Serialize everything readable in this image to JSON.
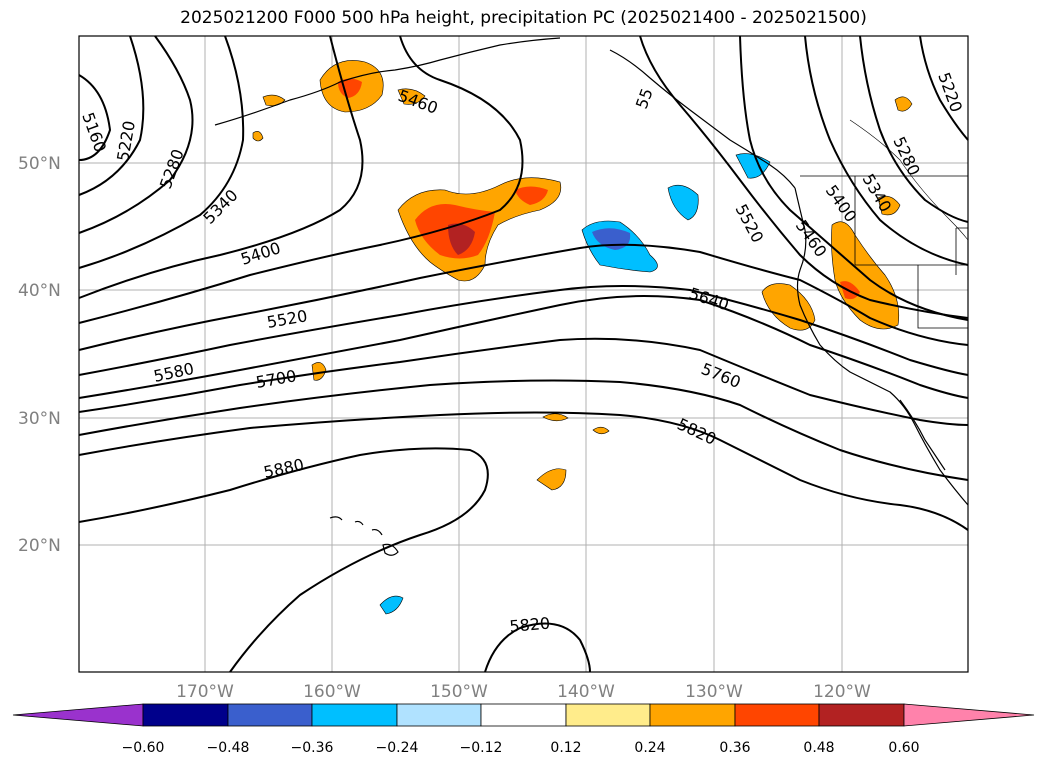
{
  "title": "2025021200 F000 500 hPa height, precipitation PC (2025021400 - 2025021500)",
  "map": {
    "lat_labels": [
      "50°N",
      "40°N",
      "30°N",
      "20°N"
    ],
    "lon_labels": [
      "170°W",
      "160°W",
      "150°W",
      "140°W",
      "130°W",
      "120°W"
    ],
    "contour_labels": [
      "5160",
      "5220",
      "5280",
      "5340",
      "5400",
      "5460",
      "5520",
      "5580",
      "5700",
      "5880",
      "5820",
      "5640",
      "5760",
      "5820",
      "5520",
      "5460",
      "5400",
      "5340",
      "5280",
      "5220",
      "55"
    ],
    "contour_color": "#000000",
    "grid": true
  },
  "colorbar": {
    "ticks": [
      "−0.60",
      "−0.48",
      "−0.36",
      "−0.24",
      "−0.12",
      "0.12",
      "0.24",
      "0.36",
      "0.48",
      "0.60"
    ],
    "colors": [
      "#9a32cd",
      "#00008b",
      "#3a5fcd",
      "#00bfff",
      "#b0e2ff",
      "#ffffff",
      "#ffec8b",
      "#ffa500",
      "#ff4500",
      "#b22222",
      "#ff82ab"
    ]
  }
}
